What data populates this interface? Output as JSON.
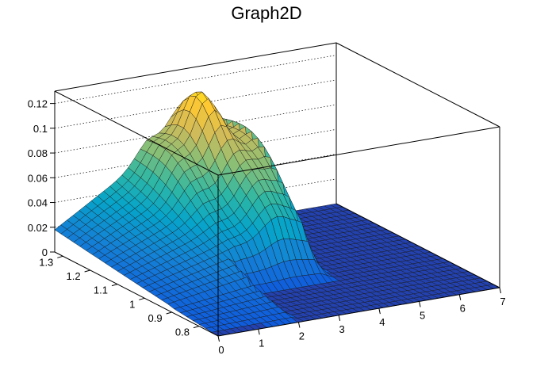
{
  "chart_data": {
    "type": "surface",
    "title": "Graph2D",
    "xlabel": "",
    "ylabel": "",
    "zlabel": "",
    "xlim": [
      0,
      7
    ],
    "ylim": [
      0.73,
      1.33
    ],
    "zlim": [
      0,
      0.13
    ],
    "x_ticks": [
      "0",
      "1",
      "2",
      "3",
      "4",
      "5",
      "6",
      "7"
    ],
    "y_ticks": [
      "0.8",
      "0.9",
      "1",
      "1.1",
      "1.2",
      "1.3"
    ],
    "z_ticks": [
      "0",
      "0.02",
      "0.04",
      "0.06",
      "0.08",
      "0.1",
      "0.12"
    ],
    "grid": true,
    "colormap": "viridis-like (blue-teal-green-yellow)",
    "colors": [
      "#352a87",
      "#0f5cdd",
      "#1481d6",
      "#06a4ca",
      "#2eb7a4",
      "#87bf77",
      "#d1bb59",
      "#fec832",
      "#f9fb0e"
    ],
    "description_points": [
      {
        "x": 0.0,
        "y": 1.3,
        "z": 0.018
      },
      {
        "x": 1.0,
        "y": 1.3,
        "z": 0.045
      },
      {
        "x": 2.0,
        "y": 1.3,
        "z": 0.065
      },
      {
        "x": 2.5,
        "y": 1.3,
        "z": 0.085
      },
      {
        "x": 3.0,
        "y": 1.3,
        "z": 0.125
      },
      {
        "x": 3.3,
        "y": 1.25,
        "z": 0.12
      },
      {
        "x": 3.5,
        "y": 1.3,
        "z": 0.095
      },
      {
        "x": 4.0,
        "y": 1.3,
        "z": 0.088
      },
      {
        "x": 4.0,
        "y": 1.2,
        "z": 0.075
      },
      {
        "x": 4.2,
        "y": 1.3,
        "z": 0.04
      },
      {
        "x": 4.3,
        "y": 1.3,
        "z": 0.0
      },
      {
        "x": 5.0,
        "y": 1.0,
        "z": 0.0
      },
      {
        "x": 7.0,
        "y": 0.8,
        "z": 0.0
      }
    ]
  }
}
